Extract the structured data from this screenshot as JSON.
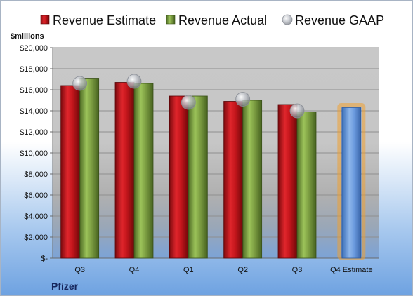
{
  "chart_data": {
    "type": "bar",
    "company": "Pfizer",
    "units_label": "$millions",
    "categories": [
      "Q3",
      "Q4",
      "Q1",
      "Q2",
      "Q3",
      "Q4 Estimate"
    ],
    "series": [
      {
        "name": "Revenue Estimate",
        "kind": "bar",
        "color": "#c0141b",
        "values": [
          16400,
          16700,
          15400,
          14900,
          14600,
          null
        ]
      },
      {
        "name": "Revenue Actual",
        "kind": "bar",
        "color": "#7ea043",
        "values": [
          17100,
          16600,
          15400,
          15000,
          13900,
          null
        ]
      },
      {
        "name": "Revenue GAAP",
        "kind": "marker",
        "color": "#a9adb5",
        "values": [
          16600,
          16800,
          14800,
          15100,
          14000,
          null
        ]
      },
      {
        "name": "Q4 Estimate",
        "kind": "highlight-bar",
        "color": "#5b8fd6",
        "glow": "#f0a030",
        "values": [
          null,
          null,
          null,
          null,
          null,
          14300
        ]
      }
    ],
    "y_ticks": [
      "$-",
      "$2,000",
      "$4,000",
      "$6,000",
      "$8,000",
      "$10,000",
      "$12,000",
      "$14,000",
      "$16,000",
      "$18,000",
      "$20,000"
    ],
    "ylim": [
      0,
      20000
    ],
    "y_step": 2000,
    "grid": true,
    "legend_position": "top",
    "plot_background": "#c4c4c4"
  }
}
